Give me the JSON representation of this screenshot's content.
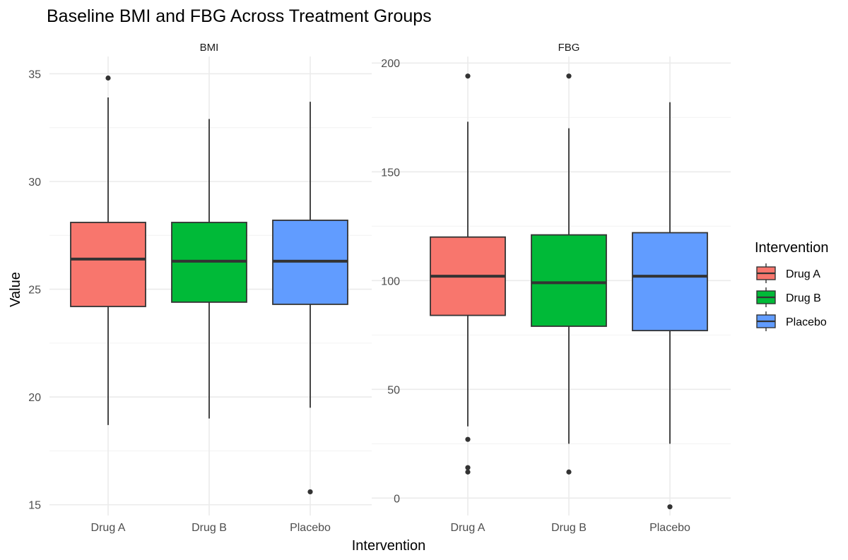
{
  "chart_data": {
    "type": "boxplot",
    "title": "Baseline BMI and FBG Across Treatment Groups",
    "xlabel": "Intervention",
    "ylabel": "Value",
    "categories": [
      "Drug A",
      "Drug B",
      "Placebo"
    ],
    "legend": {
      "title": "Intervention",
      "position": "right",
      "items": [
        {
          "label": "Drug A",
          "color": "#F8766D"
        },
        {
          "label": "Drug B",
          "color": "#00BA38"
        },
        {
          "label": "Placebo",
          "color": "#619CFF"
        }
      ]
    },
    "grid": true,
    "panels": [
      {
        "name": "BMI",
        "ylim": [
          14.5,
          35.8
        ],
        "yticks": [
          15,
          20,
          25,
          30,
          35
        ],
        "boxes": [
          {
            "category": "Drug A",
            "whisker_low": 18.7,
            "q1": 24.2,
            "median": 26.4,
            "q3": 28.1,
            "whisker_high": 33.9,
            "outliers": [
              34.8
            ]
          },
          {
            "category": "Drug B",
            "whisker_low": 19.0,
            "q1": 24.4,
            "median": 26.3,
            "q3": 28.1,
            "whisker_high": 32.9,
            "outliers": []
          },
          {
            "category": "Placebo",
            "whisker_low": 19.5,
            "q1": 24.3,
            "median": 26.3,
            "q3": 28.2,
            "whisker_high": 33.7,
            "outliers": [
              15.6
            ]
          }
        ]
      },
      {
        "name": "FBG",
        "ylim": [
          -8,
          203
        ],
        "yticks": [
          0,
          50,
          100,
          150,
          200
        ],
        "boxes": [
          {
            "category": "Drug A",
            "whisker_low": 33,
            "q1": 84,
            "median": 102,
            "q3": 120,
            "whisker_high": 173,
            "outliers": [
              194,
              27,
              14,
              12
            ]
          },
          {
            "category": "Drug B",
            "whisker_low": 25,
            "q1": 79,
            "median": 99,
            "q3": 121,
            "whisker_high": 170,
            "outliers": [
              194,
              12
            ]
          },
          {
            "category": "Placebo",
            "whisker_low": 25,
            "q1": 77,
            "median": 102,
            "q3": 122,
            "whisker_high": 182,
            "outliers": [
              -4
            ]
          }
        ]
      }
    ]
  }
}
